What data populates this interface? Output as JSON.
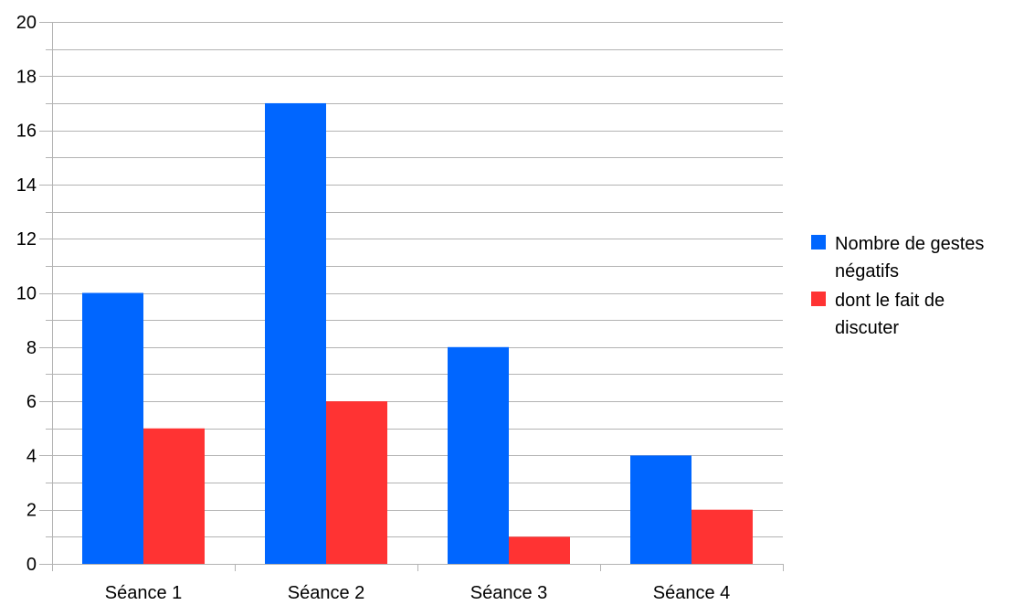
{
  "chart_data": {
    "type": "bar",
    "categories": [
      "Séance 1",
      "Séance 2",
      "Séance 3",
      "Séance 4"
    ],
    "series": [
      {
        "name": "Nombre de gestes négatifs",
        "values": [
          10,
          17,
          8,
          4
        ],
        "color": "#0066ff"
      },
      {
        "name": "dont le fait de discuter",
        "values": [
          5,
          6,
          1,
          2
        ],
        "color": "#ff3333"
      }
    ],
    "ylim": [
      0,
      20
    ],
    "y_major_ticks": [
      0,
      2,
      4,
      6,
      8,
      10,
      12,
      14,
      16,
      18,
      20
    ],
    "y_minor_step": 1,
    "grid": true,
    "legend_position": "right"
  },
  "colors": {
    "grid": "#b3b3b3",
    "axis": "#b3b3b3"
  }
}
